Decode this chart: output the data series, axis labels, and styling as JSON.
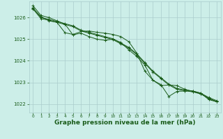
{
  "background_color": "#cceee8",
  "grid_color": "#aacccc",
  "line_color": "#1a5c1a",
  "marker_color": "#1a5c1a",
  "xlabel": "Graphe pression niveau de la mer (hPa)",
  "xlabel_fontsize": 6.5,
  "xlim": [
    -0.5,
    23.5
  ],
  "ylim": [
    1021.6,
    1026.75
  ],
  "yticks": [
    1022,
    1023,
    1024,
    1025,
    1026
  ],
  "xticks": [
    0,
    1,
    2,
    3,
    4,
    5,
    6,
    7,
    8,
    9,
    10,
    11,
    12,
    13,
    14,
    15,
    16,
    17,
    18,
    19,
    20,
    21,
    22,
    23
  ],
  "series": [
    [
      1026.55,
      1026.1,
      1026.0,
      1025.85,
      1025.7,
      1025.2,
      1025.28,
      1025.12,
      1025.0,
      1024.95,
      1025.0,
      1024.85,
      1024.5,
      1024.2,
      1023.8,
      1023.1,
      1022.9,
      1022.35,
      1022.58,
      1022.6,
      1022.6,
      1022.5,
      1022.2,
      1022.1
    ],
    [
      1026.45,
      1026.0,
      1025.92,
      1025.82,
      1025.72,
      1025.62,
      1025.42,
      1025.32,
      1025.22,
      1025.12,
      1025.02,
      1024.82,
      1024.62,
      1024.32,
      1023.92,
      1023.52,
      1023.22,
      1022.92,
      1022.72,
      1022.65,
      1022.6,
      1022.5,
      1022.3,
      1022.15
    ],
    [
      1026.4,
      1025.95,
      1025.88,
      1025.78,
      1025.68,
      1025.58,
      1025.38,
      1025.28,
      1025.18,
      1025.08,
      1024.98,
      1024.78,
      1024.58,
      1024.28,
      1023.88,
      1023.48,
      1023.18,
      1022.88,
      1022.68,
      1022.61,
      1022.56,
      1022.46,
      1022.26,
      1022.11
    ],
    [
      1026.42,
      1026.05,
      1025.85,
      1025.78,
      1025.3,
      1025.22,
      1025.35,
      1025.38,
      1025.32,
      1025.28,
      1025.22,
      1025.12,
      1024.88,
      1024.35,
      1023.52,
      1023.1,
      1022.85,
      1022.88,
      1022.85,
      1022.68,
      1022.58,
      1022.48,
      1022.25,
      1022.1
    ]
  ]
}
